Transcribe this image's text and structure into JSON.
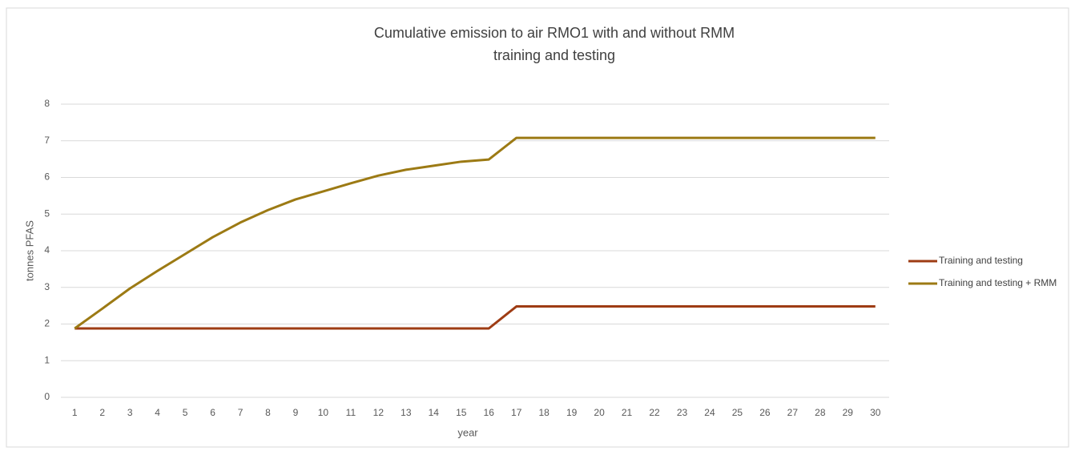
{
  "chart_data": {
    "type": "line",
    "title": "Cumulative emission to air RMO1  with and without RMM",
    "subtitle": "training and testing",
    "x_label": "year",
    "y_label": "tonnes PFAS",
    "categories": [
      "1",
      "2",
      "3",
      "4",
      "5",
      "6",
      "7",
      "8",
      "9",
      "10",
      "11",
      "12",
      "13",
      "14",
      "15",
      "16",
      "17",
      "18",
      "19",
      "20",
      "21",
      "22",
      "23",
      "24",
      "25",
      "26",
      "27",
      "28",
      "29",
      "30"
    ],
    "series": [
      {
        "name": "Training and testing",
        "color": "#9e3c14",
        "values": [
          1.88,
          1.88,
          1.88,
          1.88,
          1.88,
          1.88,
          1.88,
          1.88,
          1.88,
          1.88,
          1.88,
          1.88,
          1.88,
          1.88,
          1.88,
          1.88,
          2.48,
          2.48,
          2.48,
          2.48,
          2.48,
          2.48,
          2.48,
          2.48,
          2.48,
          2.48,
          2.48,
          2.48,
          2.48,
          2.48
        ]
      },
      {
        "name": "Training and testing + RMM",
        "color": "#9c7a14",
        "values": [
          1.88,
          2.42,
          2.97,
          3.45,
          3.91,
          4.37,
          4.77,
          5.11,
          5.4,
          5.62,
          5.84,
          6.05,
          6.21,
          6.32,
          6.43,
          6.49,
          7.08,
          7.08,
          7.08,
          7.08,
          7.08,
          7.08,
          7.08,
          7.08,
          7.08,
          7.08,
          7.08,
          7.08,
          7.08,
          7.08
        ]
      }
    ],
    "ylim": [
      0,
      8
    ],
    "yticks": [
      0,
      1,
      2,
      3,
      4,
      5,
      6,
      7,
      8
    ],
    "grid": true,
    "legend": "right"
  }
}
